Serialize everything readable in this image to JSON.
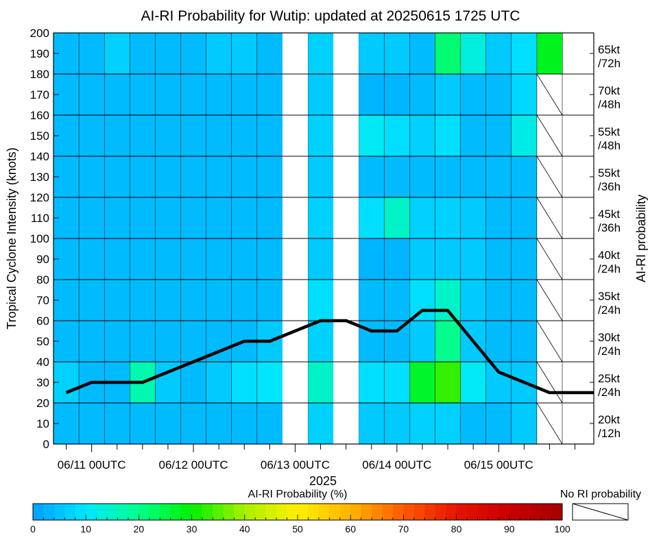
{
  "chart_data": {
    "type": "heatmap",
    "title": "AI-RI Probability for Wutip: updated at 20250615 1725 UTC",
    "ylabel": "Tropical Cyclone Intensity (knots)",
    "right_axis_label": "AI-RI probability",
    "xlabel_year": "2025",
    "x_tick_labels": [
      "06/11 00UTC",
      "06/12 00UTC",
      "06/13 00UTC",
      "06/14 00UTC",
      "06/15 00UTC"
    ],
    "y_tick_labels": [
      "0",
      "10",
      "20",
      "30",
      "40",
      "50",
      "60",
      "70",
      "80",
      "90",
      "100",
      "110",
      "120",
      "130",
      "140",
      "150",
      "160",
      "170",
      "180",
      "190",
      "200"
    ],
    "ylim": [
      0,
      200
    ],
    "row_labels": [
      [
        "20kt",
        "/12h"
      ],
      [
        "25kt",
        "/24h"
      ],
      [
        "30kt",
        "/24h"
      ],
      [
        "35kt",
        "/24h"
      ],
      [
        "40kt",
        "/24h"
      ],
      [
        "45kt",
        "/36h"
      ],
      [
        "55kt",
        "/36h"
      ],
      [
        "55kt",
        "/48h"
      ],
      [
        "70kt",
        "/48h"
      ],
      [
        "65kt",
        "/72h"
      ]
    ],
    "times": [
      "06/10 18UTC",
      "06/11 00UTC",
      "06/11 06UTC",
      "06/11 12UTC",
      "06/11 18UTC",
      "06/12 00UTC",
      "06/12 06UTC",
      "06/12 12UTC",
      "06/12 18UTC",
      "06/13 00UTC",
      "06/13 06UTC",
      "06/13 12UTC",
      "06/13 18UTC",
      "06/14 00UTC",
      "06/14 06UTC",
      "06/14 12UTC",
      "06/14 18UTC",
      "06/15 00UTC",
      "06/15 06UTC",
      "06/15 12UTC"
    ],
    "probabilities": [
      [
        4,
        4,
        4,
        4,
        4,
        4,
        4,
        4,
        4,
        null,
        7,
        null,
        6,
        6,
        7,
        7,
        4,
        4,
        6,
        null
      ],
      [
        7,
        4,
        4,
        17,
        6,
        4,
        6,
        9,
        10,
        null,
        15,
        null,
        9,
        9,
        27,
        33,
        11,
        6,
        6,
        null
      ],
      [
        4,
        4,
        4,
        4,
        4,
        4,
        4,
        4,
        6,
        null,
        7,
        null,
        4,
        4,
        6,
        20,
        6,
        4,
        4,
        null
      ],
      [
        4,
        4,
        4,
        4,
        4,
        4,
        4,
        4,
        4,
        null,
        9,
        null,
        4,
        4,
        9,
        15,
        6,
        4,
        4,
        null
      ],
      [
        4,
        4,
        4,
        4,
        4,
        4,
        4,
        4,
        4,
        null,
        6,
        null,
        3,
        3,
        6,
        6,
        6,
        4,
        4,
        null
      ],
      [
        4,
        4,
        4,
        4,
        4,
        4,
        4,
        4,
        4,
        null,
        7,
        null,
        9,
        15,
        7,
        7,
        6,
        4,
        4,
        null
      ],
      [
        4,
        4,
        4,
        4,
        4,
        4,
        4,
        4,
        4,
        null,
        6,
        null,
        4,
        4,
        4,
        4,
        4,
        4,
        4,
        null
      ],
      [
        4,
        4,
        4,
        4,
        4,
        4,
        4,
        4,
        4,
        null,
        7,
        null,
        11,
        9,
        7,
        9,
        4,
        4,
        12,
        null
      ],
      [
        4,
        4,
        4,
        4,
        4,
        4,
        4,
        4,
        4,
        null,
        6,
        null,
        3,
        3,
        4,
        6,
        4,
        4,
        8,
        null
      ],
      [
        4,
        4,
        7,
        4,
        4,
        4,
        6,
        6,
        4,
        null,
        7,
        null,
        6,
        6,
        4,
        22,
        13,
        6,
        9,
        28
      ]
    ],
    "intensity_series": {
      "name": "Intensity (knots)",
      "times": [
        "06/10 18UTC",
        "06/11 00UTC",
        "06/11 06UTC",
        "06/11 12UTC",
        "06/11 18UTC",
        "06/12 00UTC",
        "06/12 06UTC",
        "06/12 12UTC",
        "06/12 18UTC",
        "06/13 00UTC",
        "06/13 06UTC",
        "06/13 12UTC",
        "06/13 18UTC",
        "06/14 00UTC",
        "06/14 06UTC",
        "06/14 12UTC",
        "06/14 18UTC",
        "06/15 00UTC",
        "06/15 06UTC",
        "06/15 12UTC",
        "06/15 18UTC"
      ],
      "values": [
        25,
        30,
        30,
        30,
        35,
        40,
        45,
        50,
        50,
        55,
        60,
        60,
        55,
        55,
        65,
        65,
        50,
        35,
        30,
        25,
        25
      ]
    },
    "colorbar": {
      "label": "AI-RI Probability (%)",
      "ticks": [
        "0",
        "10",
        "20",
        "30",
        "40",
        "50",
        "60",
        "70",
        "80",
        "90",
        "100"
      ],
      "range": [
        0,
        100
      ],
      "no_ri_label": "No RI probability"
    }
  }
}
